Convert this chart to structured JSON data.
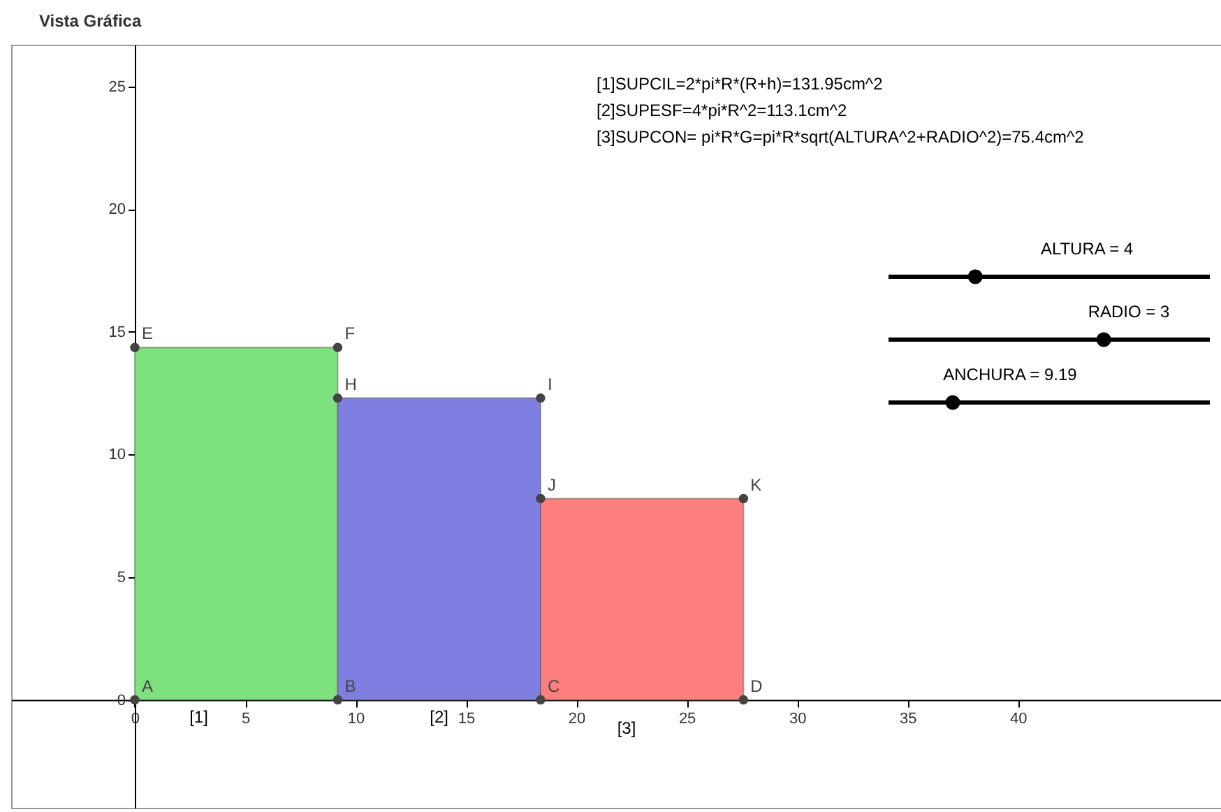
{
  "chart_data": {
    "type": "bar",
    "title": "Vista Gráfica",
    "x": [
      4.595,
      13.785,
      22.975
    ],
    "values": [
      14.36,
      12.3,
      8.2
    ],
    "colors": [
      "#7ee27e",
      "#7f7fe2",
      "#ff7f7f"
    ],
    "xlim": [
      -5.6,
      49.2
    ],
    "ylim": [
      -4.4,
      26.7
    ],
    "xticks": [
      0,
      5,
      10,
      15,
      20,
      25,
      30,
      35,
      40
    ],
    "yticks": [
      0,
      5,
      10,
      15,
      20,
      25
    ],
    "grid": false,
    "annotations": [
      {
        "text": "A",
        "x": 0,
        "y": 0
      },
      {
        "text": "B",
        "x": 9.19,
        "y": 0
      },
      {
        "text": "C",
        "x": 18.38,
        "y": 0
      },
      {
        "text": "D",
        "x": 27.57,
        "y": 0
      },
      {
        "text": "E",
        "x": 0,
        "y": 14.36
      },
      {
        "text": "F",
        "x": 9.19,
        "y": 14.36
      },
      {
        "text": "H",
        "x": 9.19,
        "y": 12.3
      },
      {
        "text": "I",
        "x": 18.38,
        "y": 12.3
      },
      {
        "text": "J",
        "x": 18.38,
        "y": 8.2
      },
      {
        "text": "K",
        "x": 27.57,
        "y": 8.2
      },
      "[1]",
      "[2]",
      "[3]",
      "[1]SUPCIL=2*pi*R*(R+h)=131.95cm^2",
      "[2]SUPESF=4*pi*R^2=113.1cm^2",
      "[3]SUPCON= pi*R*G=pi*R*sqrt(ALTURA^2+RADIO^2)=75.4cm^2",
      "ALTURA = 4",
      "RADIO = 3",
      "ANCHURA = 9.19"
    ]
  }
}
